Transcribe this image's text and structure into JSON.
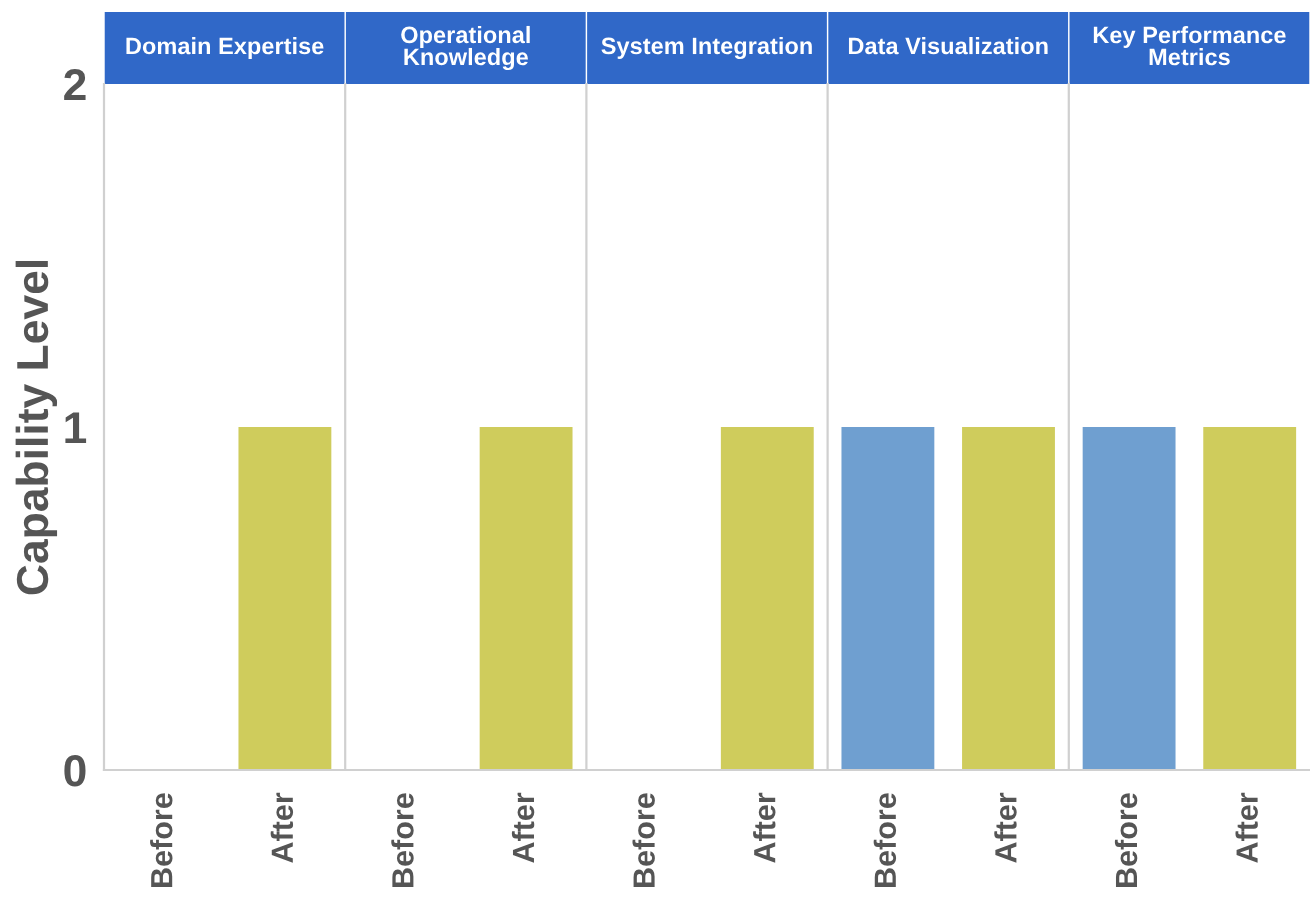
{
  "chart_data": [
    {
      "type": "bar",
      "title": "Domain Expertise",
      "ylabel": "Capability Level",
      "categories": [
        "Before",
        "After"
      ],
      "values": [
        0,
        1
      ],
      "colors": [
        "#6f9fd0",
        "#cfcc5c"
      ],
      "ylim": [
        0,
        2
      ],
      "yticks": [
        0,
        1,
        2
      ]
    },
    {
      "type": "bar",
      "title": "Operational Knowledge",
      "categories": [
        "Before",
        "After"
      ],
      "values": [
        0,
        1
      ],
      "colors": [
        "#6f9fd0",
        "#cfcc5c"
      ],
      "ylim": [
        0,
        2
      ],
      "tick_labels": "x"
    },
    {
      "type": "bar",
      "title": "System Integration",
      "categories": [
        "Before",
        "After"
      ],
      "values": [
        0,
        1
      ],
      "colors": [
        "#6f9fd0",
        "#cfcc5c"
      ],
      "ylim": [
        0,
        2
      ],
      "tick_labels": "x"
    },
    {
      "type": "bar",
      "title": "Data Visualization",
      "categories": [
        "Before",
        "After"
      ],
      "values": [
        1,
        1
      ],
      "colors": [
        "#6f9fd0",
        "#cfcc5c"
      ],
      "ylim": [
        0,
        2
      ],
      "tick_labels": "x"
    },
    {
      "type": "bar",
      "title": "Key Performance Metrics",
      "categories": [
        "Before",
        "After"
      ],
      "values": [
        1,
        1
      ],
      "colors": [
        "#6f9fd0",
        "#cfcc5c"
      ],
      "ylim": [
        0,
        2
      ],
      "tick_labels": "x"
    }
  ]
}
